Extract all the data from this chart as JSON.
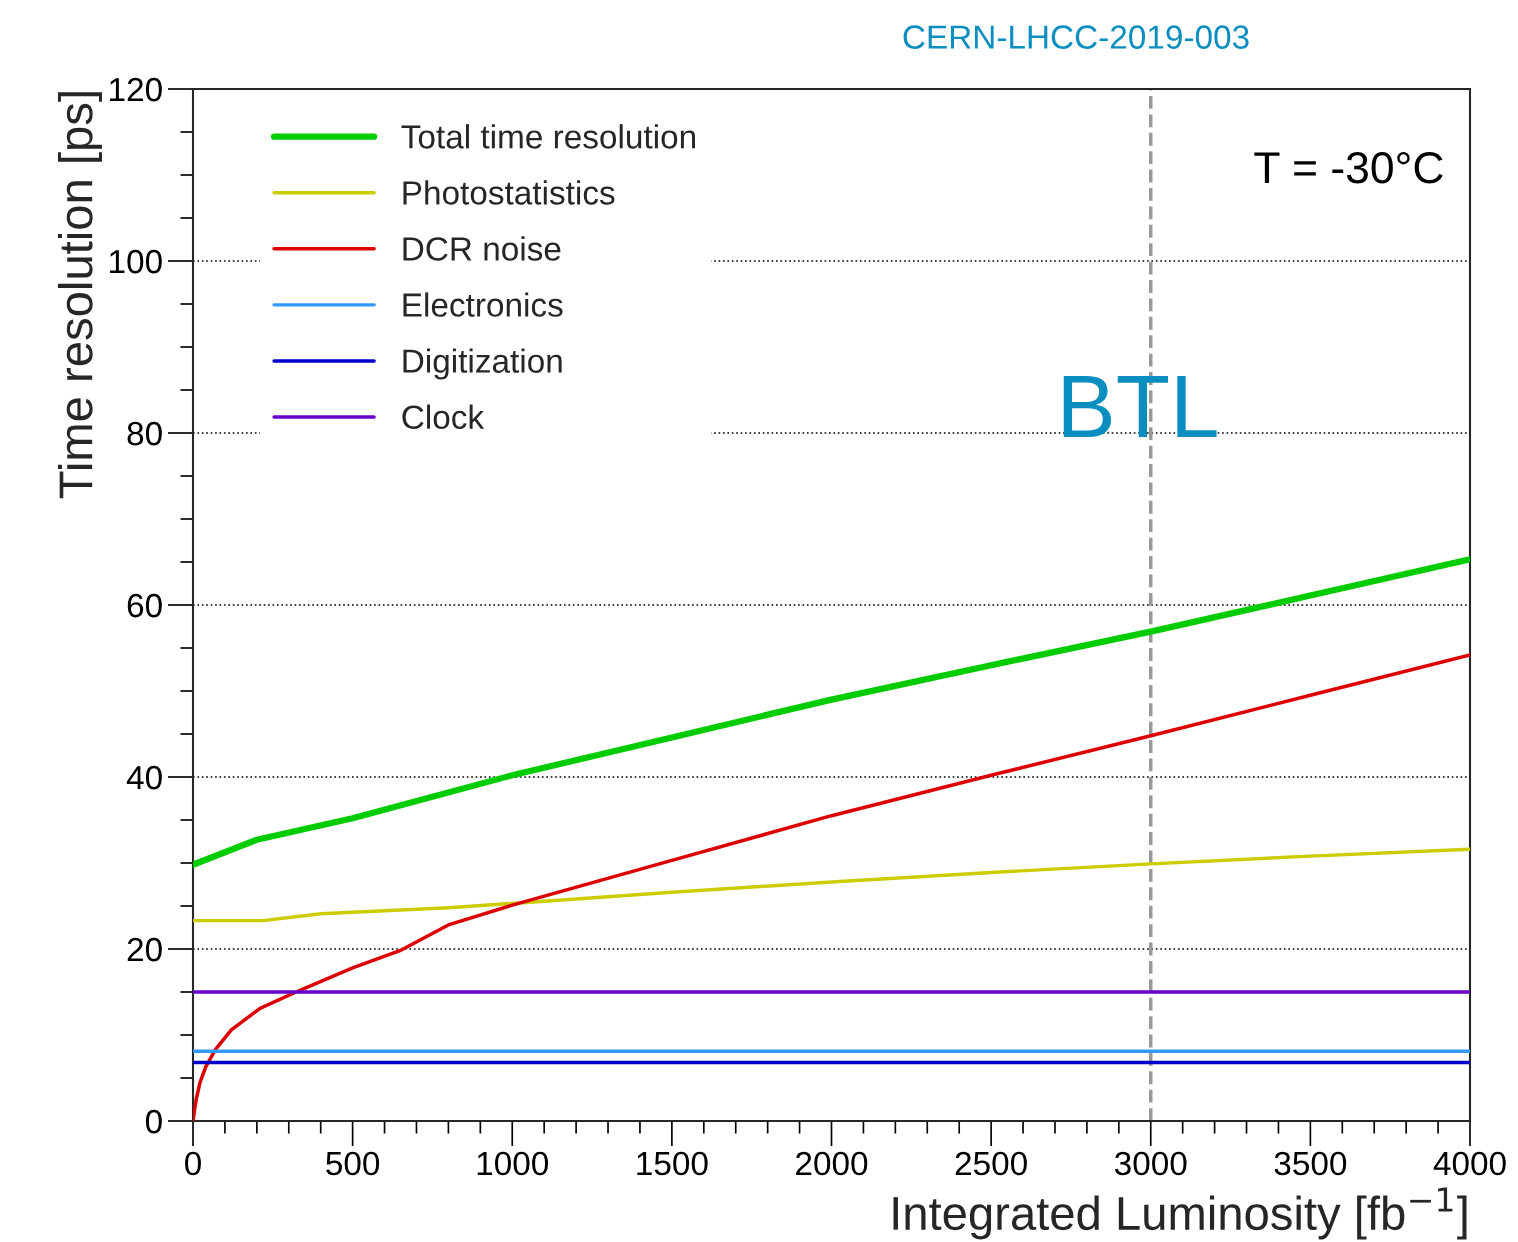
{
  "chart_data": {
    "type": "line",
    "xlabel": "Integrated Luminosity [fb$^{−1}$]",
    "ylabel": "Time resolution [ps]",
    "annotations": [
      "CERN-LHCC-2019-003",
      "BTL",
      "T = -30°C"
    ],
    "xlim": [
      0,
      4000
    ],
    "ylim": [
      0,
      120
    ],
    "xticks": [
      0,
      500,
      1000,
      1500,
      2000,
      2500,
      3000,
      3500,
      4000
    ],
    "yticks": [
      0,
      20,
      40,
      60,
      80,
      100,
      120
    ],
    "grid": "y",
    "legend": "top left",
    "marker": "none",
    "line_style": "solid",
    "ref_lines": [
      {
        "axis": "x",
        "value": 3000,
        "color": "#999999",
        "line_style": "dashed"
      }
    ],
    "series": [
      {
        "name": "Total time resolution",
        "color": "#00cc00",
        "x": [
          0,
          200,
          500,
          1000,
          1500,
          2000,
          2500,
          3000,
          3500,
          4000
        ],
        "values": [
          29.8,
          32.7,
          35.2,
          40.2,
          44.6,
          49.0,
          53.0,
          56.9,
          61.1,
          65.3
        ]
      },
      {
        "name": "Photostatistics",
        "color": "#cccc00",
        "x": [
          0,
          220,
          400,
          800,
          1000,
          1500,
          2000,
          2500,
          3000,
          3500,
          4000
        ],
        "values": [
          23.3,
          23.3,
          24.1,
          24.8,
          25.3,
          26.6,
          27.8,
          28.9,
          29.9,
          30.8,
          31.6
        ]
      },
      {
        "name": "DCR noise",
        "color": "#dd0000",
        "x": [
          0,
          10,
          22,
          40,
          70,
          120,
          210,
          335,
          500,
          648,
          800,
          1000,
          1500,
          2000,
          2500,
          3000,
          3500,
          4000
        ],
        "values": [
          0,
          2.5,
          4.5,
          6.3,
          8.3,
          10.6,
          13.1,
          15.2,
          17.8,
          19.8,
          22.8,
          25.1,
          30.3,
          35.5,
          40.2,
          44.8,
          49.5,
          54.2
        ]
      },
      {
        "name": "Electronics",
        "color": "#3399ff",
        "x": [
          0,
          4000
        ],
        "values": [
          8.1,
          8.1
        ]
      },
      {
        "name": "Digitization",
        "color": "#0000cc",
        "x": [
          0,
          4000
        ],
        "values": [
          6.8,
          6.8
        ]
      },
      {
        "name": "Clock",
        "color": "#6600cc",
        "x": [
          0,
          4000
        ],
        "values": [
          15,
          15
        ]
      }
    ]
  }
}
